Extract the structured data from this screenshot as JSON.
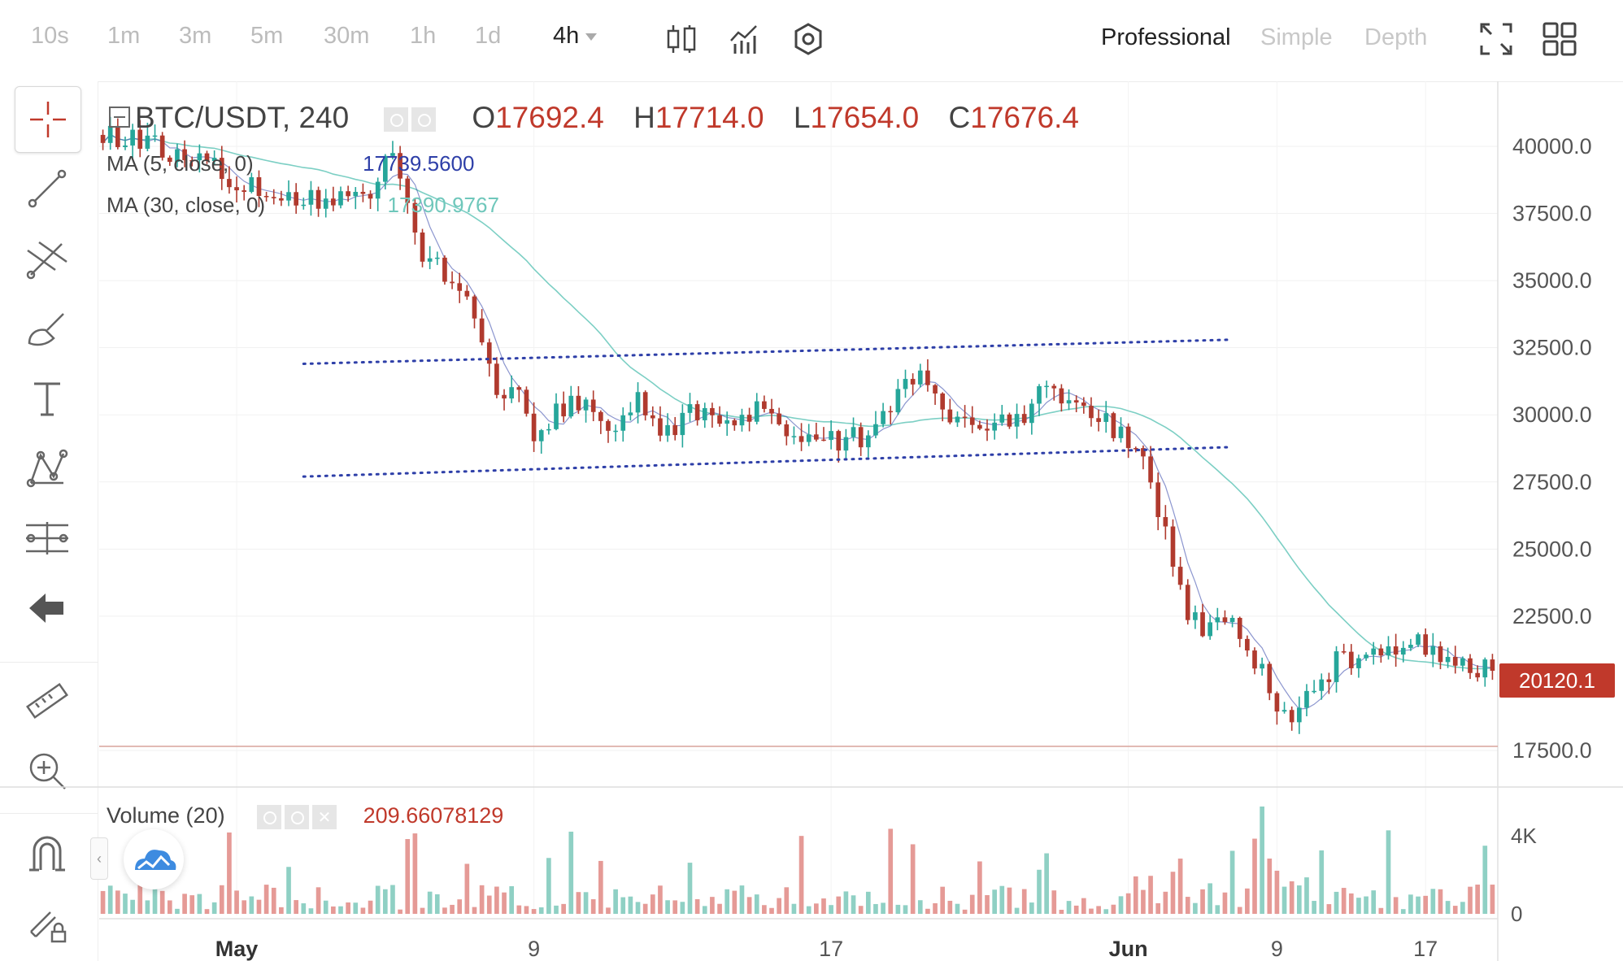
{
  "toolbar": {
    "timeframes": [
      "10s",
      "1m",
      "3m",
      "5m",
      "30m",
      "1h",
      "1d"
    ],
    "active_timeframe": "4h",
    "tool_icons": [
      "candlestick-icon",
      "indicators-icon",
      "settings-icon"
    ],
    "modes": [
      "Professional",
      "Simple",
      "Depth"
    ],
    "active_mode": "Professional",
    "right_icons": [
      "fullscreen-icon",
      "layout-grid-icon"
    ]
  },
  "sidebar": {
    "tools": [
      "crosshair-icon",
      "trend-line-icon",
      "fib-tools-icon",
      "brush-icon",
      "text-icon",
      "pattern-icon",
      "measure-icon",
      "back-arrow-icon",
      "ruler-icon",
      "zoom-in-icon",
      "magnet-icon",
      "lock-drawings-icon"
    ]
  },
  "legend": {
    "symbol": "BTC/USDT, 240",
    "open_label": "O",
    "open": "17692.4",
    "high_label": "H",
    "high": "17714.0",
    "low_label": "L",
    "low": "17654.0",
    "close_label": "C",
    "close": "17676.4",
    "ma1_label": "MA (5, close, 0)",
    "ma1_value": "17739.5600",
    "ma2_label": "MA (30, close, 0)",
    "ma2_value": "17390.9767",
    "volume_label": "Volume (20)",
    "volume_value": "209.66078129"
  },
  "price_tag": "20120.1",
  "colors": {
    "up": "#26a69a",
    "down": "#b03a2e",
    "ma5": "#2e3fa8",
    "ma30": "#7ccfc4",
    "trendline": "#2e3fa8",
    "price_tag": "#c0392b"
  },
  "chart_data": {
    "type": "candlestick",
    "symbol": "BTC/USDT",
    "interval": "240",
    "y_ticks": [
      40000,
      37500,
      35000,
      32500,
      30000,
      27500,
      25000,
      22500,
      17500
    ],
    "y_tick_labels": [
      "40000.0",
      "37500.0",
      "35000.0",
      "32500.0",
      "30000.0",
      "27500.0",
      "25000.0",
      "22500.0",
      "17500.0"
    ],
    "ylim": [
      16300,
      41800
    ],
    "x_tick_labels": [
      "May",
      "9",
      "17",
      "Jun",
      "9",
      "17"
    ],
    "price_path": [
      [
        0,
        40500
      ],
      [
        10,
        39800
      ],
      [
        20,
        38500
      ],
      [
        28,
        38000
      ],
      [
        36,
        38200
      ],
      [
        38,
        40000
      ],
      [
        40,
        38800
      ],
      [
        43,
        36000
      ],
      [
        47,
        35000
      ],
      [
        50,
        33500
      ],
      [
        53,
        31000
      ],
      [
        56,
        30500
      ],
      [
        58,
        29000
      ],
      [
        60,
        29800
      ],
      [
        64,
        30500
      ],
      [
        68,
        29500
      ],
      [
        72,
        30400
      ],
      [
        76,
        29400
      ],
      [
        80,
        30200
      ],
      [
        84,
        29600
      ],
      [
        88,
        30300
      ],
      [
        92,
        29300
      ],
      [
        96,
        29000
      ],
      [
        100,
        29100
      ],
      [
        104,
        29300
      ],
      [
        107,
        31000
      ],
      [
        110,
        31800
      ],
      [
        113,
        30300
      ],
      [
        116,
        29800
      ],
      [
        120,
        29700
      ],
      [
        124,
        30100
      ],
      [
        126,
        31200
      ],
      [
        128,
        30800
      ],
      [
        132,
        30500
      ],
      [
        136,
        29500
      ],
      [
        140,
        28200
      ],
      [
        143,
        25800
      ],
      [
        146,
        22600
      ],
      [
        149,
        22000
      ],
      [
        152,
        22400
      ],
      [
        156,
        20500
      ],
      [
        159,
        18600
      ],
      [
        162,
        19300
      ],
      [
        166,
        20800
      ],
      [
        170,
        21000
      ],
      [
        174,
        21300
      ],
      [
        178,
        21400
      ],
      [
        182,
        20800
      ],
      [
        187,
        20400
      ]
    ],
    "trendlines": [
      {
        "name": "resistance",
        "style": "dotted",
        "from": [
          27,
          31900
        ],
        "to": [
          152,
          32800
        ]
      },
      {
        "name": "support",
        "style": "dotted",
        "from": [
          27,
          27700
        ],
        "to": [
          152,
          28800
        ]
      }
    ],
    "horizontal_lines": [
      17650
    ],
    "last_price": 20120.1,
    "volume": {
      "y_ticks": [
        4000,
        0
      ],
      "y_tick_labels": [
        "4K",
        "0"
      ],
      "max": 5500
    }
  }
}
